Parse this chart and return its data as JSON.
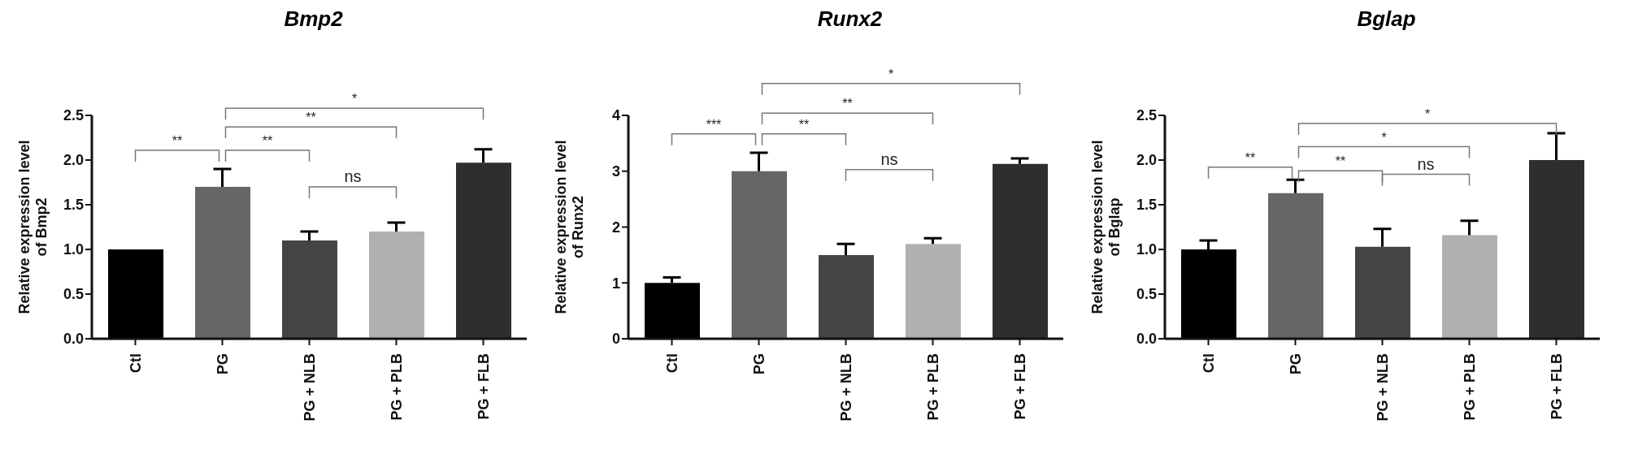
{
  "chart_data": [
    {
      "type": "bar",
      "title": "Bmp2",
      "ylabel": "Relative expression level of Bmp2",
      "categories": [
        "Ctl",
        "PG",
        "PG + NLB",
        "PG + PLB",
        "PG + FLB"
      ],
      "values": [
        1.0,
        1.7,
        1.1,
        1.2,
        1.97
      ],
      "colors": [
        "#000000",
        "#666666",
        "#444444",
        "#b0b0b0",
        "#2e2e2e"
      ],
      "errors": [
        null,
        [
          1.7,
          1.9
        ],
        [
          1.1,
          1.2
        ],
        [
          1.2,
          1.3
        ],
        [
          1.97,
          2.12
        ]
      ],
      "ylim": [
        0,
        2.5
      ],
      "yticks": [
        {
          "value": 0,
          "label": "0.0"
        },
        {
          "value": 0.5,
          "label": "0.5"
        },
        {
          "value": 1,
          "label": "1.0"
        },
        {
          "value": 1.5,
          "label": "1.5"
        },
        {
          "value": 2,
          "label": "2.0"
        },
        {
          "value": 2.5,
          "label": "2.5"
        }
      ],
      "grid": false,
      "legend": false,
      "annotations": [
        "**",
        "**",
        "**",
        "*",
        "ns"
      ]
    },
    {
      "type": "bar",
      "title": "Runx2",
      "ylabel": "Relative expression level of Runx2",
      "categories": [
        "Ctl",
        "PG",
        "PG + NLB",
        "PG + PLB",
        "PG + FLB"
      ],
      "values": [
        1.0,
        3.0,
        1.5,
        1.7,
        3.13
      ],
      "colors": [
        "#000000",
        "#666666",
        "#444444",
        "#b0b0b0",
        "#2e2e2e"
      ],
      "errors": [
        [
          1.0,
          1.1
        ],
        [
          3.0,
          3.33
        ],
        [
          1.5,
          1.7
        ],
        [
          1.7,
          1.8
        ],
        [
          3.13,
          3.23
        ]
      ],
      "ylim": [
        0,
        4
      ],
      "yticks": [
        0,
        1,
        2,
        3,
        4
      ],
      "grid": false,
      "legend": false,
      "annotations": [
        "***",
        "**",
        "**",
        "*",
        "ns"
      ]
    },
    {
      "type": "bar",
      "title": "Bglap",
      "ylabel": "Relative expression level of Bglap",
      "categories": [
        "Ctl",
        "PG",
        "PG + NLB",
        "PG + PLB",
        "PG + FLB"
      ],
      "values": [
        1.0,
        1.63,
        1.03,
        1.16,
        2.0
      ],
      "colors": [
        "#000000",
        "#666666",
        "#444444",
        "#b0b0b0",
        "#2e2e2e"
      ],
      "errors": [
        [
          1.0,
          1.1
        ],
        [
          1.63,
          1.78
        ],
        [
          1.03,
          1.23
        ],
        [
          1.16,
          1.32
        ],
        [
          2.0,
          2.3
        ]
      ],
      "ylim": [
        0,
        2.5
      ],
      "yticks": [
        {
          "value": 0,
          "label": "0.0"
        },
        {
          "value": 0.5,
          "label": "0.5"
        },
        {
          "value": 1,
          "label": "1.0"
        },
        {
          "value": 1.5,
          "label": "1.5"
        },
        {
          "value": 2,
          "label": "2.0"
        },
        {
          "value": 2.5,
          "label": "2.5"
        }
      ],
      "grid": false,
      "legend": false,
      "annotations": [
        "**",
        "**",
        "*",
        "*",
        "ns"
      ]
    }
  ]
}
